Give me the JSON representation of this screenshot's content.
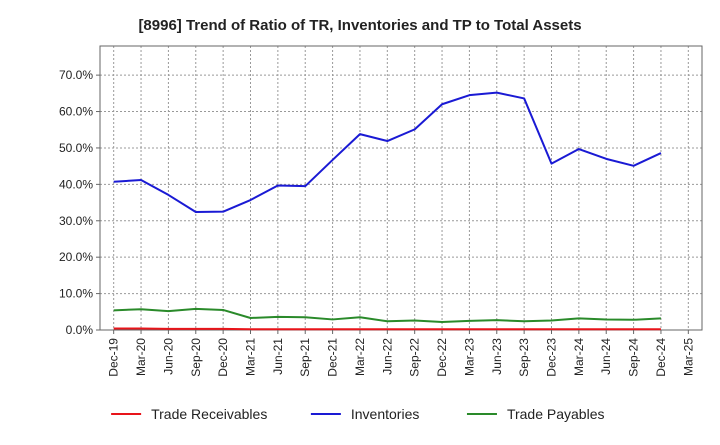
{
  "chart_data": {
    "type": "line",
    "title": "[8996]  Trend of Ratio of TR, Inventories and TP to Total Assets",
    "xlabel": "",
    "ylabel": "",
    "ylim": [
      0,
      0.78
    ],
    "yticks": [
      0,
      0.1,
      0.2,
      0.3,
      0.4,
      0.5,
      0.6,
      0.7
    ],
    "ytick_labels": [
      "0.0%",
      "10.0%",
      "20.0%",
      "30.0%",
      "40.0%",
      "50.0%",
      "60.0%",
      "70.0%"
    ],
    "x": [
      "Dec-19",
      "Mar-20",
      "Jun-20",
      "Sep-20",
      "Dec-20",
      "Mar-21",
      "Jun-21",
      "Sep-21",
      "Dec-21",
      "Mar-22",
      "Jun-22",
      "Sep-22",
      "Dec-22",
      "Mar-23",
      "Jun-23",
      "Sep-23",
      "Dec-23",
      "Mar-24",
      "Jun-24",
      "Sep-24",
      "Dec-24",
      "Mar-25"
    ],
    "grid": true,
    "legend": "bottom",
    "series": [
      {
        "name": "Trade Receivables",
        "color": "#e8141a",
        "values": [
          0.004,
          0.004,
          0.003,
          0.003,
          0.003,
          0.002,
          0.002,
          0.002,
          0.002,
          0.002,
          0.002,
          0.002,
          0.002,
          0.002,
          0.002,
          0.002,
          0.002,
          0.002,
          0.002,
          0.002,
          0.002,
          null
        ]
      },
      {
        "name": "Inventories",
        "color": "#1a1ad4",
        "values": [
          0.407,
          0.412,
          0.371,
          0.324,
          0.325,
          0.357,
          0.397,
          0.395,
          0.467,
          0.538,
          0.519,
          0.551,
          0.62,
          0.645,
          0.652,
          0.636,
          0.457,
          0.497,
          0.47,
          0.451,
          0.486,
          null
        ]
      },
      {
        "name": "Trade Payables",
        "color": "#2a8a2a",
        "values": [
          0.054,
          0.057,
          0.052,
          0.058,
          0.055,
          0.033,
          0.036,
          0.035,
          0.029,
          0.035,
          0.024,
          0.026,
          0.022,
          0.025,
          0.027,
          0.024,
          0.026,
          0.032,
          0.029,
          0.028,
          0.032,
          null
        ]
      }
    ]
  }
}
